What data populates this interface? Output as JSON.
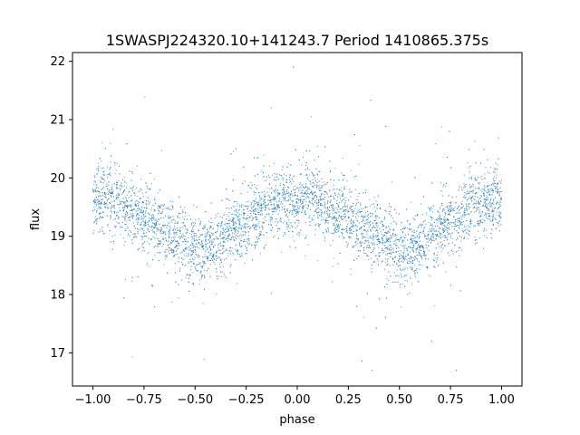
{
  "chart_data": {
    "type": "scatter",
    "title": "1SWASPJ224320.10+141243.7 Period 1410865.375s",
    "xlabel": "phase",
    "ylabel": "flux",
    "xlim": [
      -1.1,
      1.1
    ],
    "ylim": [
      16.43,
      22.15
    ],
    "xticks": [
      -1.0,
      -0.75,
      -0.5,
      -0.25,
      0.0,
      0.25,
      0.5,
      0.75,
      1.0
    ],
    "xtick_labels": [
      "−1.00",
      "−0.75",
      "−0.50",
      "−0.25",
      "0.00",
      "0.25",
      "0.50",
      "0.75",
      "1.00"
    ],
    "yticks": [
      17,
      18,
      19,
      20,
      21,
      22
    ],
    "ytick_labels": [
      "17",
      "18",
      "19",
      "20",
      "21",
      "22"
    ],
    "grid": false,
    "series_color": "#1f77b4",
    "phase_range": [
      -1.0,
      1.0
    ],
    "point_count_estimate": 6000,
    "trend": {
      "phase": [
        -1.0,
        -0.95,
        -0.9,
        -0.85,
        -0.8,
        -0.75,
        -0.7,
        -0.65,
        -0.6,
        -0.55,
        -0.5,
        -0.45,
        -0.4,
        -0.35,
        -0.3,
        -0.25,
        -0.2,
        -0.15,
        -0.1,
        -0.05,
        0.0,
        0.05,
        0.1,
        0.15,
        0.2,
        0.25,
        0.3,
        0.35,
        0.4,
        0.45,
        0.5,
        0.55,
        0.6,
        0.65,
        0.7,
        0.75,
        0.8,
        0.85,
        0.9,
        0.95,
        1.0
      ],
      "flux": [
        19.6,
        19.7,
        19.6,
        19.45,
        19.4,
        19.3,
        19.2,
        19.1,
        19.0,
        18.9,
        18.75,
        18.75,
        18.85,
        19.0,
        19.1,
        19.25,
        19.4,
        19.5,
        19.55,
        19.6,
        19.6,
        19.7,
        19.6,
        19.45,
        19.4,
        19.3,
        19.2,
        19.1,
        19.0,
        18.9,
        18.75,
        18.75,
        18.85,
        19.0,
        19.1,
        19.25,
        19.4,
        19.5,
        19.55,
        19.6,
        19.6
      ]
    },
    "scatter_sigma": 0.28,
    "outlier_range": [
      16.7,
      21.9
    ]
  }
}
